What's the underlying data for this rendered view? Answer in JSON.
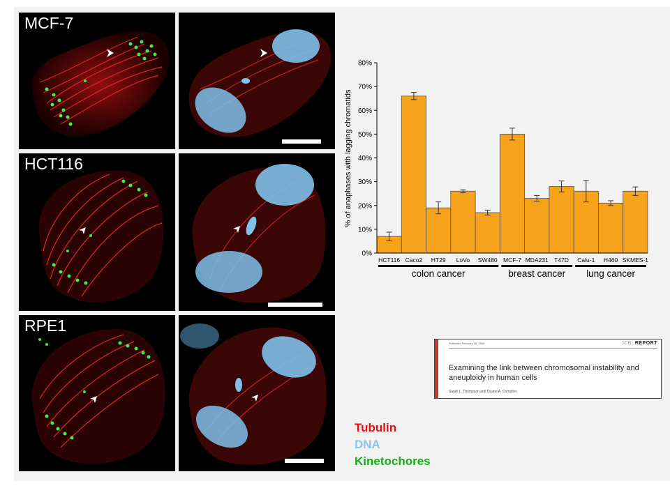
{
  "micrographs": [
    {
      "cell_line": "MCF-7"
    },
    {
      "cell_line": "HCT116"
    },
    {
      "cell_line": "RPE1"
    }
  ],
  "legend": [
    {
      "label": "Tubulin",
      "color": "#e01010"
    },
    {
      "label": "DNA",
      "color": "#8cc4ec"
    },
    {
      "label": "Kinetochores",
      "color": "#10b010"
    }
  ],
  "chart_data": {
    "type": "bar",
    "ylabel": "% of anaphases with lagging chromatids",
    "ylim": [
      0,
      80
    ],
    "yticks": [
      "0%",
      "10%",
      "20%",
      "30%",
      "40%",
      "50%",
      "60%",
      "70%",
      "80%"
    ],
    "bar_color": "#f7a21b",
    "categories": [
      "HCT116",
      "Caco2",
      "HT29",
      "LoVo",
      "SW480",
      "MCF-7",
      "MDA231",
      "T47D",
      "Calu-1",
      "H460",
      "SKMES-1"
    ],
    "values": [
      7,
      66,
      19,
      26,
      17,
      50,
      23,
      28,
      26,
      21,
      26
    ],
    "errors": [
      1.8,
      1.5,
      2.5,
      0.6,
      1.0,
      2.5,
      1.2,
      2.3,
      4.5,
      1.0,
      1.8
    ],
    "groups": [
      {
        "label": "colon cancer",
        "start": 0,
        "end": 4
      },
      {
        "label": "breast cancer",
        "start": 5,
        "end": 7
      },
      {
        "label": "lung cancer",
        "start": 8,
        "end": 10
      }
    ]
  },
  "paper": {
    "published": "Published February 16, 2009",
    "journal_prefix": "JCB:",
    "journal_section": "REPORT",
    "title": "Examining the link between chromosomal instability and aneuploidy in human cells",
    "authors": "Sarah L. Thompson and Duane A. Compton"
  }
}
